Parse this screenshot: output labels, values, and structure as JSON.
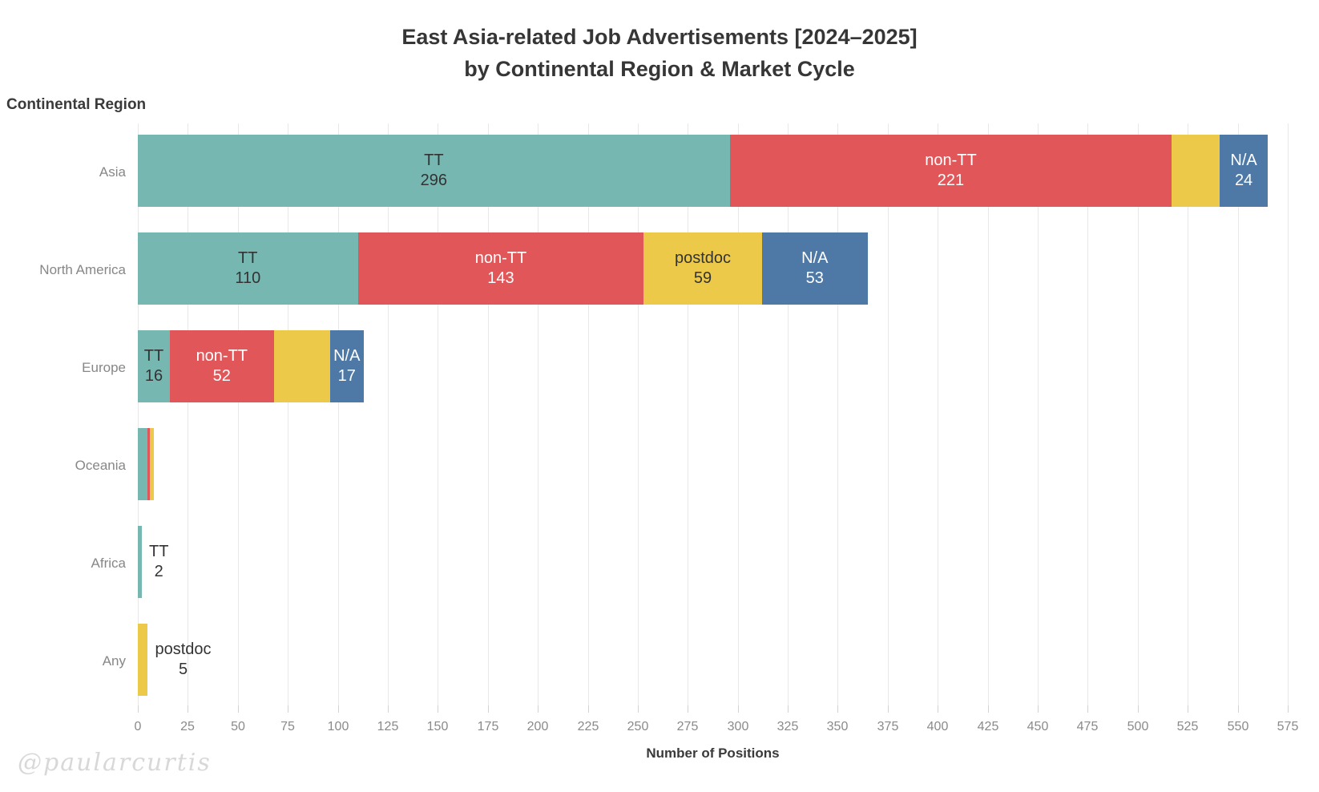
{
  "watermark": "@paularcurtis",
  "chart_data": {
    "type": "bar",
    "orientation": "horizontal_stacked",
    "title": "East Asia-related Job Advertisements [2024–2025]",
    "subtitle": "by Continental Region & Market Cycle",
    "xlabel": "Number of Positions",
    "ylabel": "Continental Region",
    "xlim": [
      0,
      575
    ],
    "tick_step": 25,
    "x_ticks": [
      0,
      25,
      50,
      75,
      100,
      125,
      150,
      175,
      200,
      225,
      250,
      275,
      300,
      325,
      350,
      375,
      400,
      425,
      450,
      475,
      500,
      525,
      550,
      575
    ],
    "grid": true,
    "legend": "none (segments labeled in-bar)",
    "series_names": [
      "TT",
      "non-TT",
      "postdoc",
      "N/A"
    ],
    "series_colors": {
      "TT": "#76b7b2",
      "non-TT": "#e15759",
      "postdoc": "#edc949",
      "N/A": "#4e79a7"
    },
    "series_label_colors": {
      "TT": "#333333",
      "non-TT": "#ffffff",
      "postdoc": "#333333",
      "N/A": "#ffffff"
    },
    "rows": [
      {
        "category": "Asia",
        "segments": [
          {
            "name": "TT",
            "value": 296,
            "labeled": true,
            "label_position": "inside"
          },
          {
            "name": "non-TT",
            "value": 221,
            "labeled": true,
            "label_position": "inside"
          },
          {
            "name": "postdoc",
            "value": 24,
            "labeled": false,
            "label_position": "none"
          },
          {
            "name": "N/A",
            "value": 24,
            "labeled": true,
            "label_position": "inside"
          }
        ]
      },
      {
        "category": "North America",
        "segments": [
          {
            "name": "TT",
            "value": 110,
            "labeled": true,
            "label_position": "inside"
          },
          {
            "name": "non-TT",
            "value": 143,
            "labeled": true,
            "label_position": "inside"
          },
          {
            "name": "postdoc",
            "value": 59,
            "labeled": true,
            "label_position": "inside"
          },
          {
            "name": "N/A",
            "value": 53,
            "labeled": true,
            "label_position": "inside"
          }
        ]
      },
      {
        "category": "Europe",
        "segments": [
          {
            "name": "TT",
            "value": 16,
            "labeled": true,
            "label_position": "inside"
          },
          {
            "name": "non-TT",
            "value": 52,
            "labeled": true,
            "label_position": "inside"
          },
          {
            "name": "postdoc",
            "value": 28,
            "labeled": false,
            "label_position": "none"
          },
          {
            "name": "N/A",
            "value": 17,
            "labeled": true,
            "label_position": "inside"
          }
        ]
      },
      {
        "category": "Oceania",
        "segments": [
          {
            "name": "TT",
            "value": 5,
            "labeled": false,
            "label_position": "none"
          },
          {
            "name": "non-TT",
            "value": 1,
            "labeled": false,
            "label_position": "none"
          },
          {
            "name": "postdoc",
            "value": 2,
            "labeled": false,
            "label_position": "none"
          }
        ]
      },
      {
        "category": "Africa",
        "segments": [
          {
            "name": "TT",
            "value": 2,
            "labeled": true,
            "label_position": "outside"
          }
        ]
      },
      {
        "category": "Any",
        "segments": [
          {
            "name": "postdoc",
            "value": 5,
            "labeled": true,
            "label_position": "outside"
          }
        ]
      }
    ]
  }
}
